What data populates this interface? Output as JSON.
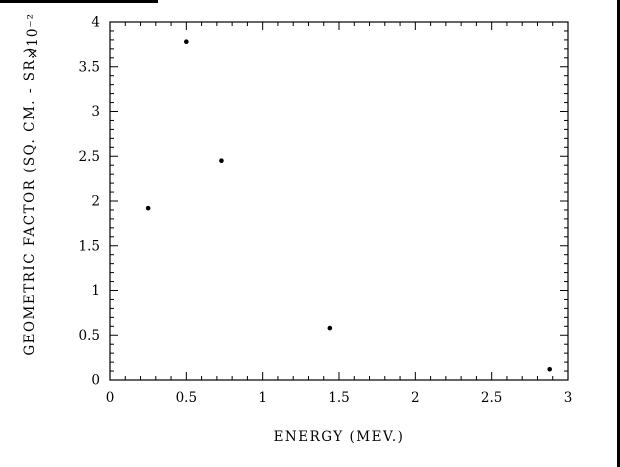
{
  "chart_data": {
    "type": "scatter",
    "title": "",
    "xlabel": "ENERGY (MEV.)",
    "ylabel": "GEOMETRIC FACTOR (SQ. CM. - SR.)",
    "y_multiplier": "×10⁻²",
    "xlim": [
      0,
      3
    ],
    "ylim": [
      0,
      4
    ],
    "x_major_ticks": [
      0,
      0.5,
      1,
      1.5,
      2,
      2.5,
      3
    ],
    "x_tick_labels": [
      "0",
      "0.5",
      "1",
      "1.5",
      "2",
      "2.5",
      "3"
    ],
    "y_major_ticks": [
      0,
      0.5,
      1,
      1.5,
      2,
      2.5,
      3,
      3.5,
      4
    ],
    "y_tick_labels": [
      "0",
      "0.5",
      "1",
      "1.5",
      "2",
      "2.5",
      "3",
      "3.5",
      "4"
    ],
    "minor_tick_step": 0.1,
    "grid": false,
    "legend": null,
    "marker": {
      "shape": "dot",
      "color": "#000000",
      "radius": 2.3
    },
    "points": [
      {
        "x": 0.25,
        "y": 1.92
      },
      {
        "x": 0.5,
        "y": 3.78
      },
      {
        "x": 0.73,
        "y": 2.45
      },
      {
        "x": 1.44,
        "y": 0.58
      },
      {
        "x": 2.88,
        "y": 0.12
      }
    ]
  }
}
